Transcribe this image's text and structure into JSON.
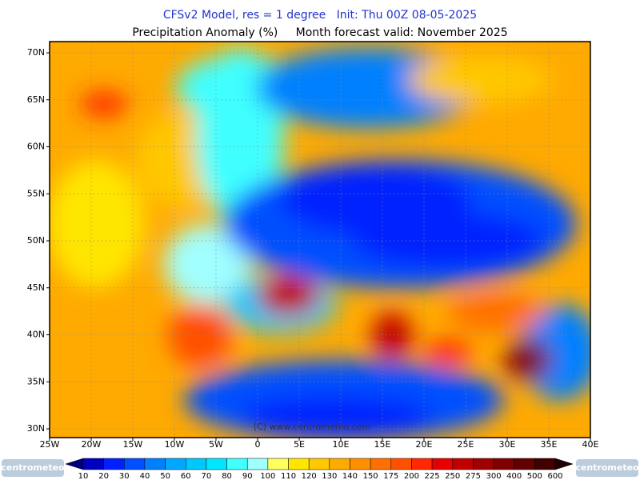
{
  "header": {
    "title": "CFSv2 Model, res = 1 degree   Init: Thu 00Z 08-05-2025",
    "subtitle": "Precipitation Anomaly (%)     Month forecast valid: November 2025"
  },
  "map": {
    "lat_labels": [
      "30N",
      "35N",
      "40N",
      "45N",
      "50N",
      "55N",
      "60N",
      "65N",
      "70N"
    ],
    "lon_labels": [
      "25W",
      "20W",
      "15W",
      "10W",
      "5W",
      "0",
      "5E",
      "10E",
      "15E",
      "20E",
      "25E",
      "30E",
      "35E",
      "40E"
    ],
    "copyright": "(C) www.centrometeo.com"
  },
  "colorbar": {
    "labels": [
      10,
      20,
      30,
      40,
      50,
      60,
      70,
      80,
      90,
      100,
      110,
      120,
      130,
      140,
      150,
      175,
      200,
      225,
      250,
      275,
      300,
      400,
      500,
      600
    ],
    "colors": [
      "#00007f",
      "#0000c0",
      "#0020ff",
      "#0050ff",
      "#0080ff",
      "#00a8ff",
      "#00c8ff",
      "#00e6ff",
      "#40ffff",
      "#a0ffff",
      "#ffff60",
      "#ffe600",
      "#ffc800",
      "#ffaa00",
      "#ff9000",
      "#ff7000",
      "#ff5000",
      "#ff2800",
      "#e60000",
      "#c00000",
      "#a00000",
      "#800000",
      "#600000",
      "#400000",
      "#200000"
    ]
  },
  "logos": {
    "left": "centrometeo",
    "right": "centrometeo"
  }
}
